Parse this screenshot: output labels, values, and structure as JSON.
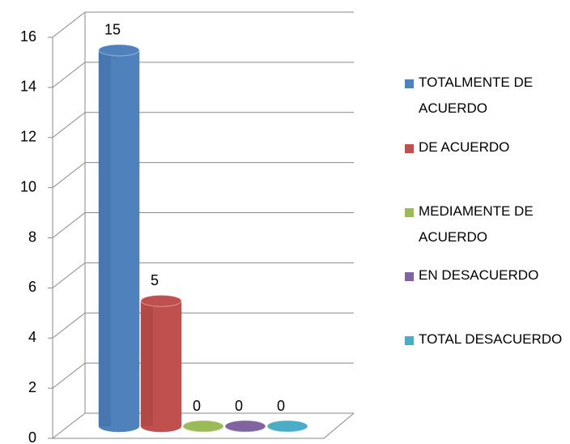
{
  "chart_data": {
    "type": "bar3d",
    "categories": [
      null
    ],
    "series": [
      {
        "name": "TOTALMENTE DE ACUERDO",
        "color": "#4f81bd",
        "values": [
          15
        ]
      },
      {
        "name": "DE ACUERDO",
        "color": "#c0504d",
        "values": [
          5
        ]
      },
      {
        "name": "MEDIAMENTE DE ACUERDO",
        "color": "#9bbb59",
        "values": [
          0
        ]
      },
      {
        "name": "EN DESACUERDO",
        "color": "#8064a2",
        "values": [
          0
        ]
      },
      {
        "name": "TOTAL DESACUERDO",
        "color": "#4bacc6",
        "values": [
          0
        ]
      }
    ],
    "ylim": [
      0,
      16
    ],
    "yticks": [
      0,
      2,
      4,
      6,
      8,
      10,
      12,
      14,
      16
    ],
    "grid": true,
    "legend": "right"
  }
}
